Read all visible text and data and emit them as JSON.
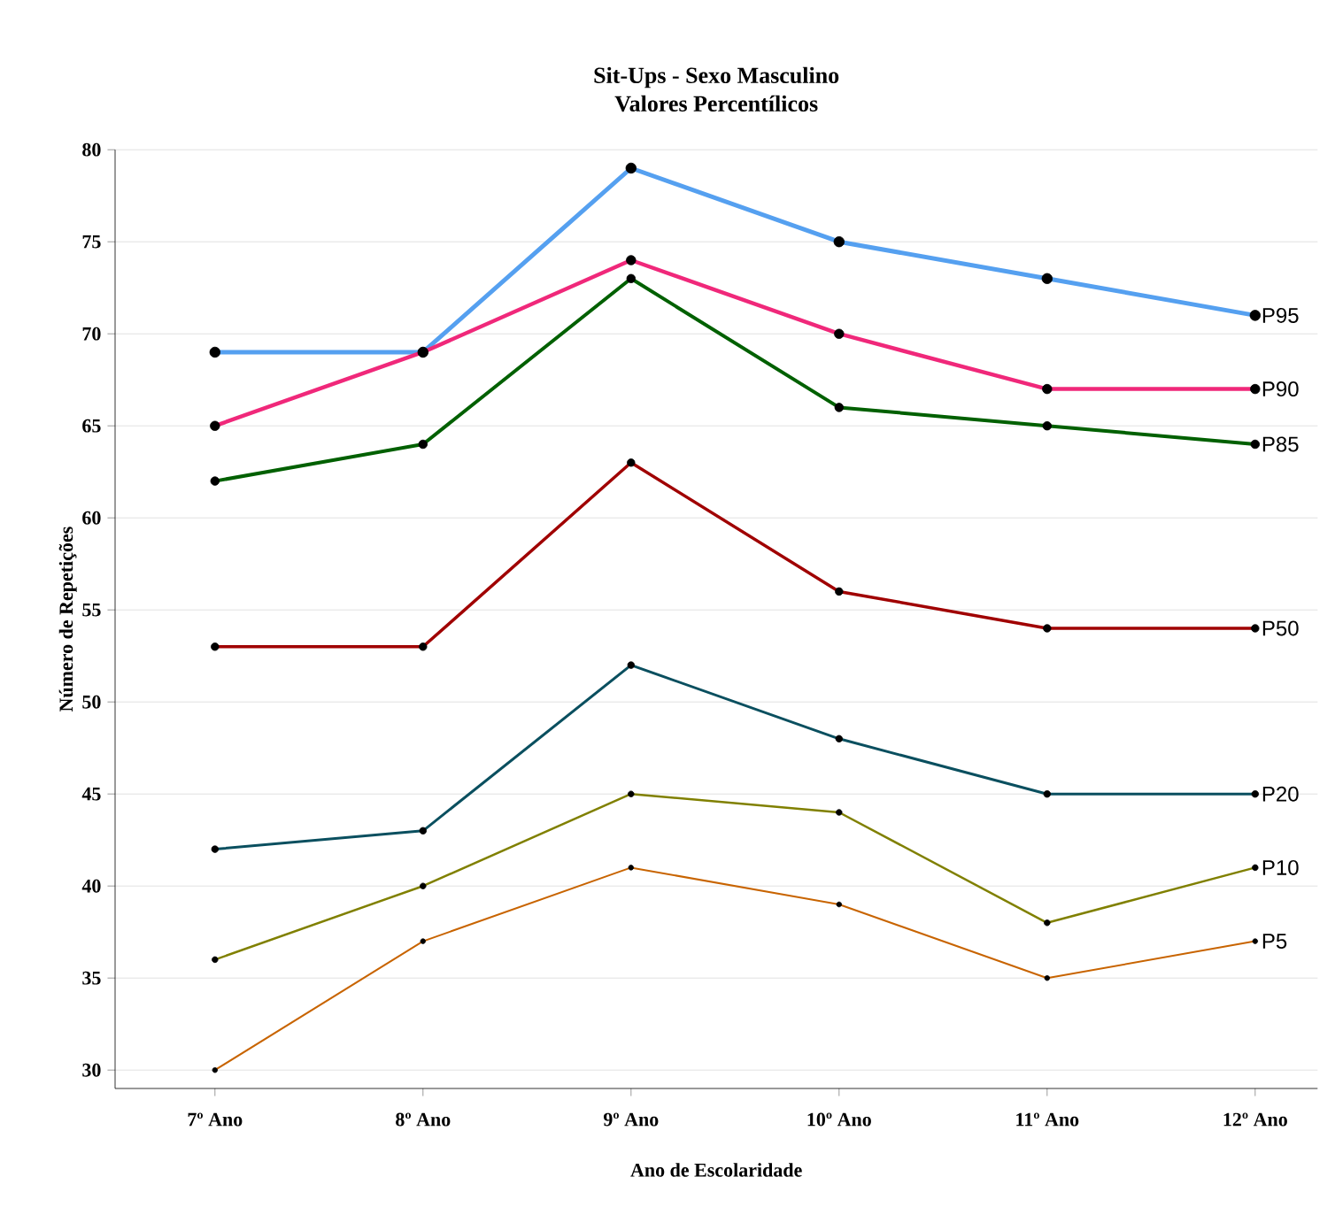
{
  "chart_data": {
    "type": "line",
    "title": "Sit-Ups - Sexo Masculino",
    "subtitle": "Valores Percentílicos",
    "xlabel": "Ano de Escolaridade",
    "ylabel": "Número de Repetições",
    "categories": [
      "7º Ano",
      "8º Ano",
      "9º Ano",
      "10º Ano",
      "11º Ano",
      "12º Ano"
    ],
    "series": [
      {
        "name": "P95",
        "color": "#55a0f0",
        "values": [
          69,
          69,
          79,
          75,
          73,
          71
        ]
      },
      {
        "name": "P90",
        "color": "#f0287a",
        "values": [
          65,
          69,
          74,
          70,
          67,
          67
        ]
      },
      {
        "name": "P85",
        "color": "#006000",
        "values": [
          62,
          64,
          73,
          66,
          65,
          64
        ]
      },
      {
        "name": "P50",
        "color": "#a00000",
        "values": [
          53,
          53,
          63,
          56,
          54,
          54
        ]
      },
      {
        "name": "P20",
        "color": "#0a4f5f",
        "values": [
          42,
          43,
          52,
          48,
          45,
          45
        ]
      },
      {
        "name": "P10",
        "color": "#808000",
        "values": [
          36,
          40,
          45,
          44,
          38,
          41
        ]
      },
      {
        "name": "P5",
        "color": "#c86400",
        "values": [
          30,
          37,
          41,
          39,
          35,
          37
        ]
      }
    ],
    "ylim": [
      29,
      80
    ],
    "yticks": [
      30,
      35,
      40,
      45,
      50,
      55,
      60,
      65,
      70,
      75,
      80
    ],
    "grid": "y",
    "legend": false,
    "marker": "circle",
    "line_style": "solid"
  }
}
